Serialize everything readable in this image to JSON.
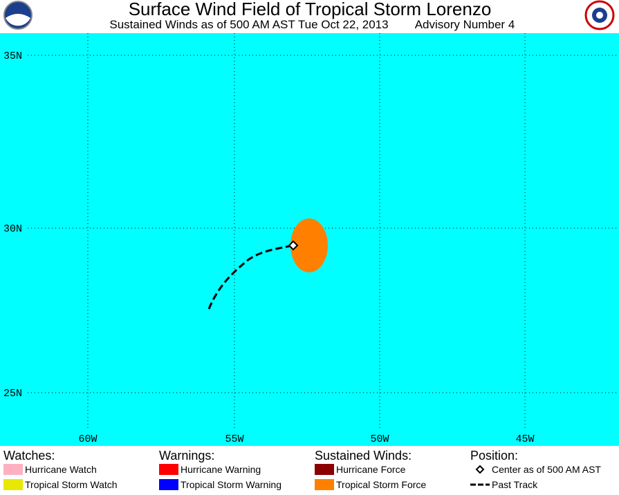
{
  "header": {
    "title": "Surface Wind Field of Tropical Storm Lorenzo",
    "subtitle": "Sustained Winds as of 500 AM AST Tue Oct 22, 2013",
    "advisory": "Advisory Number 4"
  },
  "map": {
    "latitude_labels": [
      "35N",
      "30N",
      "25N"
    ],
    "longitude_labels": [
      "60W",
      "55W",
      "50W",
      "45W"
    ]
  },
  "legend": {
    "groups": [
      {
        "heading": "Watches:",
        "items": [
          "Hurricane Watch",
          "Tropical Storm Watch"
        ]
      },
      {
        "heading": "Warnings:",
        "items": [
          "Hurricane Warning",
          "Tropical Storm Warning"
        ]
      },
      {
        "heading": "Sustained Winds:",
        "items": [
          "Hurricane Force",
          "Tropical Storm Force"
        ]
      },
      {
        "heading": "Position:",
        "items": [
          "Center as of 500 AM AST",
          "Past Track"
        ]
      }
    ]
  }
}
